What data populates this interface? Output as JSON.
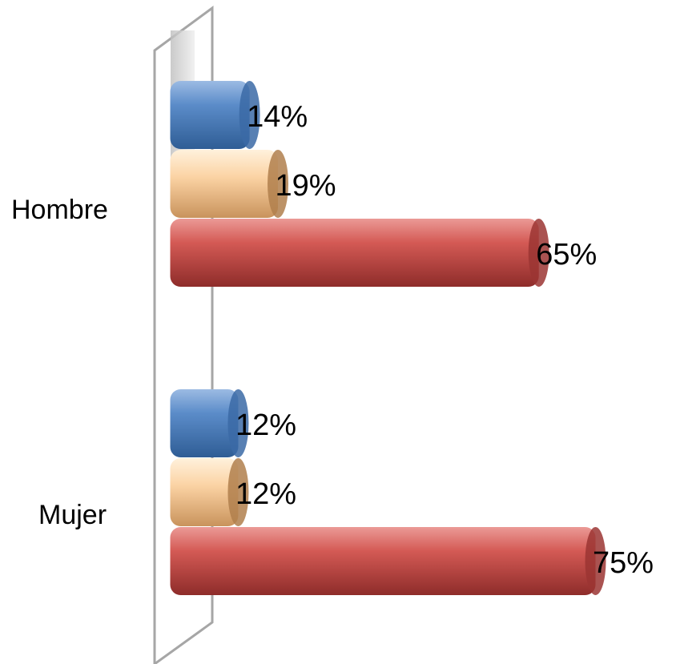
{
  "chart_data": {
    "type": "bar",
    "orientation": "horizontal",
    "style": "3d-cylinder",
    "categories": [
      "Hombre",
      "Mujer"
    ],
    "series": [
      {
        "color": "#4f81bd",
        "values": [
          14,
          12
        ],
        "labels": [
          "14%",
          "12%"
        ]
      },
      {
        "color": "#fac08f",
        "values": [
          19,
          12
        ],
        "labels": [
          "19%",
          "12%"
        ]
      },
      {
        "color": "#c0504d",
        "values": [
          65,
          75
        ],
        "labels": [
          "65%",
          "75%"
        ]
      }
    ],
    "value_unit": "%",
    "xlim": [
      0,
      80
    ],
    "grid": false,
    "legend": "none"
  }
}
